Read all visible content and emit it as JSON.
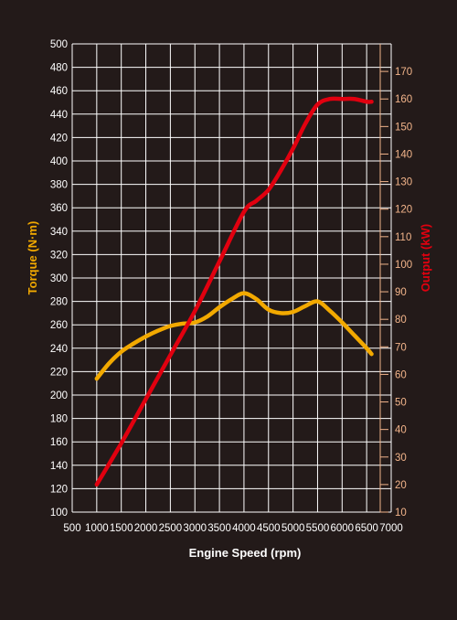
{
  "chart_data": {
    "type": "line",
    "xlabel": "Engine Speed (rpm)",
    "ylabel_left": "Torque (N·m)",
    "ylabel_right": "Output (kW)",
    "x_ticks": [
      500,
      1000,
      1500,
      2000,
      2500,
      3000,
      3500,
      4000,
      4500,
      5000,
      5500,
      6000,
      6500,
      7000
    ],
    "xlim": [
      500,
      7000
    ],
    "y_left_ticks": [
      100,
      120,
      140,
      160,
      180,
      200,
      220,
      240,
      260,
      280,
      300,
      320,
      340,
      360,
      380,
      400,
      420,
      440,
      460,
      480,
      500
    ],
    "ylim_left": [
      100,
      500
    ],
    "y_right_ticks": [
      10,
      20,
      30,
      40,
      50,
      60,
      70,
      80,
      90,
      100,
      110,
      120,
      130,
      140,
      150,
      160,
      170
    ],
    "ylim_right": [
      10,
      180
    ],
    "grid": true,
    "colors": {
      "background": "#231a19",
      "grid": "#ffffff",
      "torque": "#f2a900",
      "output": "#e1000f",
      "right_tick": "#f2b48a",
      "left_label": "#f2a900",
      "right_label": "#e1000f"
    },
    "series": [
      {
        "key": "torque",
        "axis": "left",
        "x": [
          1000,
          1250,
          1500,
          1750,
          2000,
          2250,
          2500,
          2750,
          3000,
          3250,
          3500,
          3750,
          4000,
          4250,
          4500,
          4750,
          5000,
          5250,
          5500,
          5750,
          6000,
          6250,
          6500,
          6600
        ],
        "values": [
          214,
          227,
          237,
          244,
          250,
          255,
          259,
          261,
          262,
          267,
          275,
          282,
          287,
          282,
          273,
          270,
          271,
          276,
          280,
          272,
          262,
          251,
          240,
          235
        ]
      },
      {
        "key": "output",
        "axis": "right",
        "x": [
          1000,
          1500,
          2000,
          2500,
          3000,
          3500,
          4000,
          4250,
          4500,
          4750,
          5000,
          5250,
          5500,
          5750,
          6000,
          6250,
          6500,
          6600
        ],
        "values": [
          20,
          35,
          51,
          67,
          83,
          101,
          119,
          123,
          127,
          134,
          142,
          151,
          158,
          160,
          160,
          160,
          159,
          159
        ]
      }
    ]
  }
}
